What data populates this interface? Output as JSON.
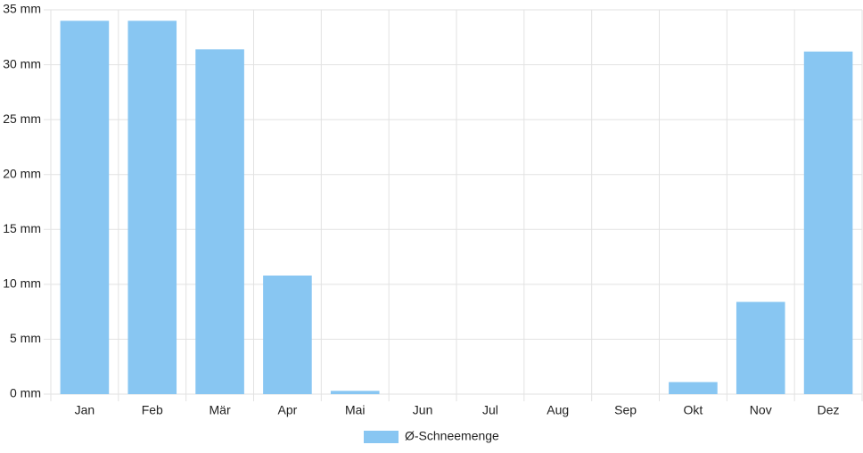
{
  "chart_data": {
    "type": "bar",
    "categories": [
      "Jan",
      "Feb",
      "Mär",
      "Apr",
      "Mai",
      "Jun",
      "Jul",
      "Aug",
      "Sep",
      "Okt",
      "Nov",
      "Dez"
    ],
    "series": [
      {
        "name": "Ø-Schneemenge",
        "color": "#88c6f2",
        "values": [
          34.0,
          34.0,
          31.4,
          10.8,
          0.3,
          0,
          0,
          0,
          0,
          1.1,
          8.4,
          31.2
        ]
      }
    ],
    "ylim": [
      0,
      35
    ],
    "yticks": [
      {
        "value": 0,
        "label": "0 mm"
      },
      {
        "value": 5,
        "label": "5 mm"
      },
      {
        "value": 10,
        "label": "10 mm"
      },
      {
        "value": 15,
        "label": "15 mm"
      },
      {
        "value": 20,
        "label": "20 mm"
      },
      {
        "value": 25,
        "label": "25 mm"
      },
      {
        "value": 30,
        "label": "30 mm"
      },
      {
        "value": 35,
        "label": "35 mm"
      }
    ],
    "grid": true,
    "legend": "bottom"
  }
}
